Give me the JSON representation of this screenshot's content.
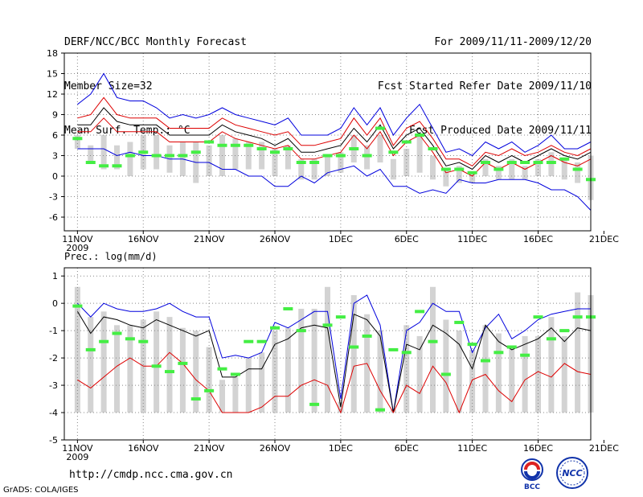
{
  "header": {
    "left": [
      "DERF/NCC/BCC Monthly Forecast",
      "Member Size=32",
      "Mean Surf. Temp.: °C"
    ],
    "right": [
      "For 2009/11/11-2009/12/20",
      "Fcst Started Refer Date 2009/11/10",
      "Fcst Produced Date 2009/11/11"
    ]
  },
  "footer": {
    "url": "http://cmdp.ncc.cma.gov.cn",
    "grads": "GrADS: COLA/IGES",
    "logo_left": "BCC",
    "logo_right": "NCC"
  },
  "colors": {
    "max": "#0000dd",
    "mean": "#000000",
    "ensemble": "#dd0000",
    "obs": "#44ee44",
    "bar": "#d3d3d3",
    "grid": "#888888"
  },
  "chart_data": [
    {
      "type": "line",
      "title": "Mean Surf. Temp.: °C",
      "ylim": [
        -8,
        18
      ],
      "yticks": [
        "-6",
        "-3",
        "0",
        "3",
        "6",
        "9",
        "12",
        "15",
        "18"
      ],
      "ytick_values": [
        -6,
        -3,
        0,
        3,
        6,
        9,
        12,
        15,
        18
      ],
      "xtick_days": [
        0,
        5,
        10,
        15,
        20,
        25,
        30,
        35
      ],
      "xtick_labels": [
        "11NOV",
        "16NOV",
        "21NOV",
        "26NOV",
        "1DEC",
        "6DEC",
        "11DEC",
        "16DEC",
        "21DEC"
      ],
      "year_label": "2009",
      "xlim": [
        -1,
        39
      ],
      "series": [
        {
          "name": "max",
          "color_key": "max",
          "values": [
            10.5,
            12,
            15,
            11.5,
            11,
            11,
            10,
            8.5,
            9,
            8.5,
            9,
            10,
            9,
            8.5,
            8,
            7.5,
            8.5,
            6,
            6,
            6,
            7,
            10,
            7.5,
            10,
            6,
            8.5,
            10.5,
            7,
            3.5,
            4,
            3,
            5,
            4,
            5,
            3.5,
            4.5,
            6,
            4,
            4,
            5
          ]
        },
        {
          "name": "upper",
          "color_key": "ensemble",
          "values": [
            8.5,
            9,
            11.5,
            9,
            8.5,
            8.5,
            8.5,
            7,
            7,
            7,
            7,
            8.5,
            7.5,
            7,
            6.5,
            6,
            6.5,
            4.5,
            4.5,
            5,
            5.5,
            8.5,
            6,
            8.5,
            4.5,
            7,
            8,
            5.5,
            2.5,
            2.5,
            1.5,
            3.5,
            3,
            4,
            3,
            3.5,
            4.5,
            3.5,
            3,
            4
          ]
        },
        {
          "name": "mean",
          "color_key": "mean",
          "values": [
            7.5,
            7.5,
            10,
            8,
            7.5,
            7.5,
            7.5,
            6,
            6,
            6,
            6,
            7.5,
            6.5,
            6,
            5.5,
            4.5,
            5.5,
            3.5,
            3.5,
            4,
            4.5,
            7,
            5,
            7.5,
            4,
            6,
            7,
            4.5,
            1.5,
            2,
            1,
            3,
            2,
            3,
            2,
            3,
            4,
            3,
            2.5,
            3.5
          ]
        },
        {
          "name": "lower",
          "color_key": "ensemble",
          "values": [
            6.5,
            6.5,
            8.5,
            6.5,
            6.5,
            6.5,
            6.5,
            5,
            5,
            5,
            5,
            6.5,
            5.5,
            5,
            4.5,
            4,
            4.5,
            2.5,
            2.5,
            3,
            3.5,
            6,
            4,
            6.5,
            3,
            5,
            6,
            3.5,
            0.5,
            1,
            0,
            2,
            1,
            2,
            1,
            2,
            3,
            2,
            1.5,
            2.5
          ]
        },
        {
          "name": "min",
          "color_key": "max",
          "values": [
            4,
            4,
            4,
            3,
            3.5,
            3,
            3,
            2.5,
            2.5,
            2,
            2,
            1,
            1,
            0,
            0,
            -1.5,
            -1.5,
            0,
            -1,
            0.5,
            1,
            1.5,
            0,
            1,
            -1.5,
            -1.5,
            -2.5,
            -2,
            -2.5,
            -0.5,
            -1,
            -1,
            -0.5,
            -0.5,
            -0.5,
            -1,
            -2,
            -2,
            -3,
            -5
          ]
        }
      ],
      "bars": {
        "low": [
          4,
          2,
          1,
          1,
          0,
          1,
          1,
          0.5,
          0,
          -1,
          0,
          0,
          1,
          1,
          1,
          0,
          1,
          -0.5,
          -0.5,
          0,
          0.5,
          2,
          1,
          2,
          -0.5,
          0,
          0.5,
          -0.5,
          -1.5,
          -1,
          -1,
          0,
          -0.5,
          -0.5,
          -0.5,
          0,
          0,
          -0.5,
          -1,
          -3.5
        ],
        "high": [
          6,
          4.5,
          6,
          4.5,
          5,
          6,
          6,
          4.5,
          5,
          5,
          4.5,
          6,
          5.5,
          5,
          5,
          4,
          4.5,
          2.5,
          2.5,
          3,
          3.5,
          6,
          4.5,
          6,
          2.5,
          4,
          6,
          3,
          1,
          1.5,
          0.5,
          2.5,
          1.5,
          2.5,
          1.5,
          2.5,
          3.5,
          2.5,
          2,
          3
        ]
      },
      "obs": [
        5.5,
        2,
        1.5,
        1.5,
        3,
        3.5,
        3,
        3,
        3,
        3.5,
        5,
        4.5,
        4.5,
        4.5,
        4,
        3.5,
        4,
        2,
        2,
        3,
        3,
        4,
        3,
        7,
        3.5,
        5,
        6,
        4,
        1,
        1,
        0.5,
        2,
        1,
        2,
        2,
        2,
        2,
        2.5,
        1,
        -0.5
      ]
    },
    {
      "type": "line",
      "title": "Prec.: log(mm/d)",
      "ylim": [
        -5,
        1.3
      ],
      "yticks": [
        "-5",
        "-4",
        "-3",
        "-2",
        "-1",
        "0",
        "1"
      ],
      "ytick_values": [
        -5,
        -4,
        -3,
        -2,
        -1,
        0,
        1
      ],
      "xtick_days": [
        0,
        5,
        10,
        15,
        20,
        25,
        30,
        35
      ],
      "xtick_labels": [
        "11NOV",
        "16NOV",
        "21NOV",
        "26NOV",
        "1DEC",
        "6DEC",
        "11DEC",
        "16DEC",
        "21DEC"
      ],
      "year_label": "2009",
      "xlim": [
        -1,
        39
      ],
      "series": [
        {
          "name": "max",
          "color_key": "max",
          "values": [
            0,
            -0.5,
            0,
            -0.2,
            -0.3,
            -0.3,
            -0.2,
            0,
            -0.3,
            -0.5,
            -0.5,
            -2,
            -1.9,
            -2,
            -1.8,
            -0.7,
            -0.9,
            -0.6,
            -0.3,
            -0.3,
            -3.5,
            0,
            0.3,
            -0.8,
            -4,
            -1,
            -0.7,
            0,
            -0.3,
            -0.3,
            -1.8,
            -0.9,
            -0.4,
            -1.3,
            -1,
            -0.6,
            -0.4,
            -0.3,
            -0.2,
            -0.2
          ]
        },
        {
          "name": "mean",
          "color_key": "mean",
          "values": [
            -0.3,
            -1.1,
            -0.5,
            -0.6,
            -0.8,
            -0.9,
            -0.6,
            -0.8,
            -1,
            -1.2,
            -1,
            -2.7,
            -2.7,
            -2.4,
            -2.4,
            -1.5,
            -1.3,
            -0.9,
            -0.8,
            -0.9,
            -3.8,
            -0.4,
            -0.6,
            -1.2,
            -4,
            -1.5,
            -1.7,
            -0.8,
            -1.1,
            -1.5,
            -2.4,
            -0.8,
            -1.4,
            -1.7,
            -1.5,
            -1.3,
            -0.9,
            -1.4,
            -0.9,
            -1
          ]
        },
        {
          "name": "ensemble",
          "color_key": "ensemble",
          "values": [
            -2.8,
            -3.1,
            -2.7,
            -2.3,
            -2,
            -2.3,
            -2.3,
            -1.8,
            -2.2,
            -2.8,
            -3.2,
            -4,
            -4,
            -4,
            -3.8,
            -3.4,
            -3.4,
            -3,
            -2.8,
            -3,
            -4,
            -2.3,
            -2.2,
            -3.2,
            -4,
            -3,
            -3.3,
            -2.3,
            -2.9,
            -4,
            -2.8,
            -2.6,
            -3.2,
            -3.6,
            -2.8,
            -2.5,
            -2.7,
            -2.2,
            -2.5,
            -2.6
          ]
        }
      ],
      "bars": {
        "low": [
          -4,
          -4,
          -4,
          -4,
          -4,
          -4,
          -4,
          -4,
          -4,
          -4,
          -4,
          -4,
          -4,
          -4,
          -4,
          -4,
          -4,
          -4,
          -4,
          -4,
          -4,
          -4,
          -4,
          -4,
          -4,
          -4,
          -4,
          -4,
          -4,
          -4,
          -4,
          -4,
          -4,
          -4,
          -4,
          -4,
          -4,
          -4,
          -4,
          -4
        ],
        "high": [
          0.6,
          -0.5,
          -0.3,
          -0.8,
          -0.8,
          -0.6,
          -0.3,
          -0.5,
          -0.9,
          -1,
          -1.6,
          -2.8,
          -2.7,
          -2,
          -1.8,
          -1,
          -0.9,
          -0.2,
          -0.2,
          0.6,
          -3.6,
          0.3,
          -0.4,
          -1,
          -3.9,
          -0.8,
          -1.2,
          0.6,
          -0.6,
          -1,
          -1.7,
          -0.8,
          -1.1,
          -1.6,
          -1.2,
          -1.2,
          -0.5,
          -1.2,
          0.4,
          0.3
        ]
      },
      "obs": [
        -0.1,
        -1.7,
        -1.4,
        -1.1,
        -1.3,
        -1.4,
        -2.3,
        -2.5,
        -2.2,
        -3.5,
        -3.2,
        -2.4,
        -2.6,
        -1.4,
        -1.4,
        -0.9,
        -0.2,
        -1,
        -3.7,
        -0.8,
        -0.5,
        -1.6,
        -1.2,
        -3.9,
        -1.7,
        -1.8,
        -0.3,
        -1.4,
        -2.6,
        -0.7,
        -1.5,
        -2.1,
        -1.8,
        -1.6,
        -1.9,
        -0.5,
        -1.3,
        -1,
        -0.5,
        -0.5
      ]
    }
  ]
}
